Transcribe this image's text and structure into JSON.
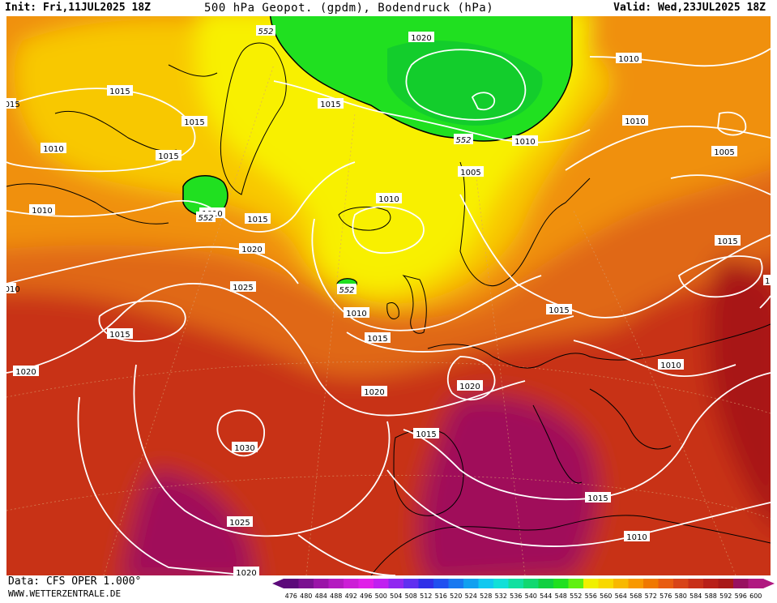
{
  "header": {
    "init": "Init: Fri,11JUL2025 18Z",
    "title": "500 hPa Geopot. (gpdm), Bodendruck (hPa)",
    "valid": "Valid: Wed,23JUL2025 18Z"
  },
  "footer": {
    "source": "Data: CFS OPER 1.000°",
    "website": "WWW.WETTERZENTRALE.DE"
  },
  "legend": {
    "values": [
      "476",
      "480",
      "484",
      "488",
      "492",
      "496",
      "500",
      "504",
      "508",
      "512",
      "516",
      "520",
      "524",
      "528",
      "532",
      "536",
      "540",
      "544",
      "548",
      "552",
      "556",
      "560",
      "564",
      "568",
      "572",
      "576",
      "580",
      "584",
      "588",
      "592",
      "596",
      "600"
    ],
    "colors": [
      "#5c0a7a",
      "#7a1090",
      "#9a14a8",
      "#b41ac0",
      "#cc1ed6",
      "#e020e8",
      "#c020f0",
      "#9028f0",
      "#6030f0",
      "#3030e8",
      "#2050f0",
      "#1878f0",
      "#10a0f0",
      "#10c8f0",
      "#10e0d8",
      "#10e0a0",
      "#10d870",
      "#10d040",
      "#20e020",
      "#60f010",
      "#f0f000",
      "#f8d800",
      "#f8b800",
      "#f89800",
      "#f07800",
      "#e85c10",
      "#d84418",
      "#c83018",
      "#b82018",
      "#a81818",
      "#981060",
      "#b01880"
    ]
  },
  "contours": {
    "geopotential_green": "552",
    "isobars": [
      "1015",
      "1015",
      "1020",
      "1015",
      "1015",
      "1010",
      "1010",
      "1010",
      "1015",
      "1015",
      "1020",
      "1025",
      "1015",
      "1020",
      "1030",
      "1025",
      "1020",
      "1010",
      "1010",
      "1010",
      "1005",
      "1010",
      "1010",
      "1005",
      "1010",
      "1015",
      "1015",
      "1015",
      "1010",
      "1020",
      "1020",
      "1015",
      "1010",
      "1015",
      "1010",
      "1015",
      "1010",
      "1015"
    ]
  },
  "colors": {
    "green_field": "#20e020",
    "yellow": "#f8f000",
    "gold": "#f8c800",
    "orange": "#f09010",
    "dark_orange": "#e06818",
    "red": "#c83018",
    "deep_red": "#a81818",
    "crimson": "#a0105a",
    "isobar": "#ffffff",
    "coast": "#000000"
  }
}
